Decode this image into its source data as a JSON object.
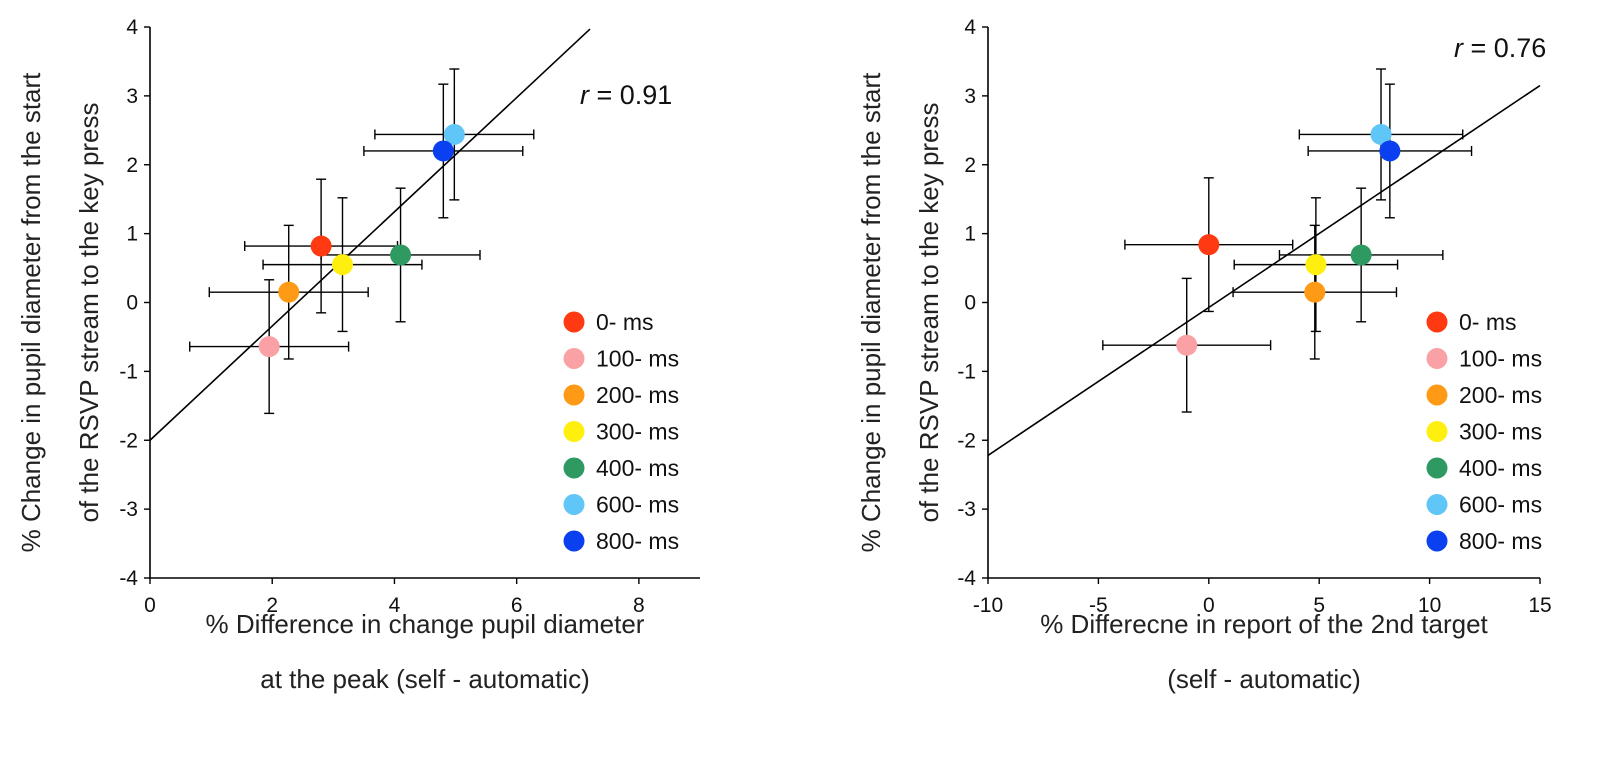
{
  "chart_data": [
    {
      "type": "scatter",
      "r_label": "r",
      "r_value": " = 0.91",
      "xlabel_lines": [
        "% Difference in change pupil diameter",
        "at the peak (self - automatic)"
      ],
      "ylabel_lines": [
        "% Change in pupil diameter from the start",
        "of the RSVP stream to the key press"
      ],
      "xlim": [
        0,
        9
      ],
      "ylim": [
        -4,
        4
      ],
      "xticks": [
        0,
        2,
        4,
        6,
        8
      ],
      "yticks": [
        -4,
        -3,
        -2,
        -1,
        0,
        1,
        2,
        3,
        4
      ],
      "regression": {
        "x": [
          0,
          7.2
        ],
        "y": [
          -2.0,
          3.97
        ]
      },
      "points": [
        {
          "label": "0- ms",
          "color": "#ff3a12",
          "x": 2.8,
          "y": 0.82,
          "xerr": 1.25,
          "yerr": 0.97
        },
        {
          "label": "100- ms",
          "color": "#f9a1a4",
          "x": 1.95,
          "y": -0.64,
          "xerr": 1.3,
          "yerr": 0.97
        },
        {
          "label": "200- ms",
          "color": "#ff9a17",
          "x": 2.27,
          "y": 0.15,
          "xerr": 1.3,
          "yerr": 0.97
        },
        {
          "label": "300- ms",
          "color": "#ffef0f",
          "x": 3.15,
          "y": 0.55,
          "xerr": 1.3,
          "yerr": 0.97
        },
        {
          "label": "400- ms",
          "color": "#2e9a62",
          "x": 4.1,
          "y": 0.69,
          "xerr": 1.3,
          "yerr": 0.97
        },
        {
          "label": "600- ms",
          "color": "#5fc6f7",
          "x": 4.98,
          "y": 2.44,
          "xerr": 1.3,
          "yerr": 0.95
        },
        {
          "label": "800- ms",
          "color": "#0a40f0",
          "x": 4.8,
          "y": 2.2,
          "xerr": 1.3,
          "yerr": 0.97
        }
      ]
    },
    {
      "type": "scatter",
      "r_label": "r",
      "r_value": " = 0.76",
      "xlabel_lines": [
        "% Differecne in report of the 2nd target",
        "(self - automatic)"
      ],
      "ylabel_lines": [
        "% Change in pupil diameter from the start",
        "of the RSVP stream to the key press"
      ],
      "xlim": [
        -10,
        15
      ],
      "ylim": [
        -4,
        4
      ],
      "xticks": [
        -10,
        -5,
        0,
        5,
        10,
        15
      ],
      "yticks": [
        -4,
        -3,
        -2,
        -1,
        0,
        1,
        2,
        3,
        4
      ],
      "regression": {
        "x": [
          -10,
          15
        ],
        "y": [
          -2.22,
          3.15
        ]
      },
      "points": [
        {
          "label": "0- ms",
          "color": "#ff3a12",
          "x": 0.0,
          "y": 0.84,
          "xerr": 3.8,
          "yerr": 0.97
        },
        {
          "label": "100- ms",
          "color": "#f9a1a4",
          "x": -1.0,
          "y": -0.62,
          "xerr": 3.8,
          "yerr": 0.97
        },
        {
          "label": "200- ms",
          "color": "#ff9a17",
          "x": 4.8,
          "y": 0.15,
          "xerr": 3.7,
          "yerr": 0.97
        },
        {
          "label": "300- ms",
          "color": "#ffef0f",
          "x": 4.85,
          "y": 0.55,
          "xerr": 3.7,
          "yerr": 0.97
        },
        {
          "label": "400- ms",
          "color": "#2e9a62",
          "x": 6.9,
          "y": 0.69,
          "xerr": 3.7,
          "yerr": 0.97
        },
        {
          "label": "600- ms",
          "color": "#5fc6f7",
          "x": 7.8,
          "y": 2.44,
          "xerr": 3.7,
          "yerr": 0.95
        },
        {
          "label": "800- ms",
          "color": "#0a40f0",
          "x": 8.2,
          "y": 2.2,
          "xerr": 3.7,
          "yerr": 0.97
        }
      ]
    }
  ]
}
